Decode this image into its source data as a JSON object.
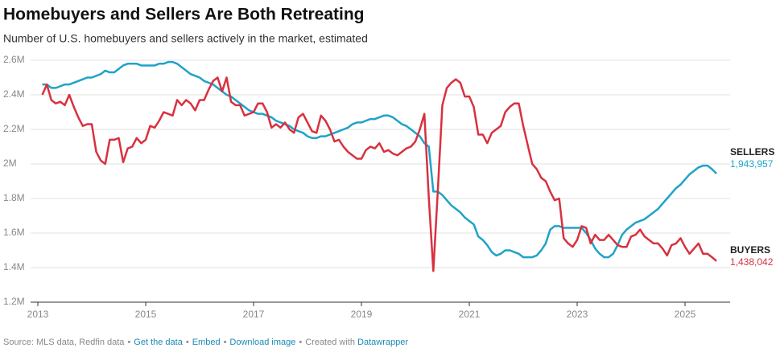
{
  "chart_data": {
    "type": "line",
    "title": "Homebuyers and Sellers Are Both Retreating",
    "subtitle": "Number of U.S. homebuyers and sellers actively in the market, estimated",
    "x": [
      2013.083,
      2013.167,
      2013.25,
      2013.333,
      2013.417,
      2013.5,
      2013.583,
      2013.667,
      2013.75,
      2013.833,
      2013.917,
      2014,
      2014.083,
      2014.167,
      2014.25,
      2014.333,
      2014.417,
      2014.5,
      2014.583,
      2014.667,
      2014.75,
      2014.833,
      2014.917,
      2015,
      2015.083,
      2015.167,
      2015.25,
      2015.333,
      2015.417,
      2015.5,
      2015.583,
      2015.667,
      2015.75,
      2015.833,
      2015.917,
      2016,
      2016.083,
      2016.167,
      2016.25,
      2016.333,
      2016.417,
      2016.5,
      2016.583,
      2016.667,
      2016.75,
      2016.833,
      2016.917,
      2017,
      2017.083,
      2017.167,
      2017.25,
      2017.333,
      2017.417,
      2017.5,
      2017.583,
      2017.667,
      2017.75,
      2017.833,
      2017.917,
      2018,
      2018.083,
      2018.167,
      2018.25,
      2018.333,
      2018.417,
      2018.5,
      2018.583,
      2018.667,
      2018.75,
      2018.833,
      2018.917,
      2019,
      2019.083,
      2019.167,
      2019.25,
      2019.333,
      2019.417,
      2019.5,
      2019.583,
      2019.667,
      2019.75,
      2019.833,
      2019.917,
      2020,
      2020.083,
      2020.167,
      2020.25,
      2020.333,
      2020.417,
      2020.5,
      2020.583,
      2020.667,
      2020.75,
      2020.833,
      2020.917,
      2021,
      2021.083,
      2021.167,
      2021.25,
      2021.333,
      2021.417,
      2021.5,
      2021.583,
      2021.667,
      2021.75,
      2021.833,
      2021.917,
      2022,
      2022.083,
      2022.167,
      2022.25,
      2022.333,
      2022.417,
      2022.5,
      2022.583,
      2022.667,
      2022.75,
      2022.833,
      2022.917,
      2023,
      2023.083,
      2023.167,
      2023.25,
      2023.333,
      2023.417,
      2023.5,
      2023.583,
      2023.667,
      2023.75,
      2023.833,
      2023.917,
      2024,
      2024.083,
      2024.167,
      2024.25,
      2024.333,
      2024.417,
      2024.5,
      2024.583,
      2024.667,
      2024.75,
      2024.833,
      2024.917,
      2025,
      2025.083,
      2025.167,
      2025.25,
      2025.333,
      2025.417,
      2025.5,
      2025.583
    ],
    "series": [
      {
        "name": "SELLERS",
        "color": "#1fa3c8",
        "values": [
          2460000,
          2460000,
          2440000,
          2440000,
          2450000,
          2460000,
          2460000,
          2470000,
          2480000,
          2490000,
          2500000,
          2500000,
          2510000,
          2520000,
          2540000,
          2530000,
          2530000,
          2550000,
          2570000,
          2580000,
          2580000,
          2580000,
          2570000,
          2570000,
          2570000,
          2570000,
          2580000,
          2580000,
          2590000,
          2590000,
          2580000,
          2560000,
          2540000,
          2520000,
          2510000,
          2500000,
          2480000,
          2470000,
          2460000,
          2440000,
          2420000,
          2400000,
          2390000,
          2370000,
          2350000,
          2330000,
          2310000,
          2300000,
          2290000,
          2290000,
          2280000,
          2270000,
          2250000,
          2240000,
          2230000,
          2220000,
          2200000,
          2190000,
          2180000,
          2160000,
          2150000,
          2150000,
          2160000,
          2160000,
          2170000,
          2180000,
          2190000,
          2200000,
          2210000,
          2230000,
          2240000,
          2240000,
          2250000,
          2260000,
          2260000,
          2270000,
          2280000,
          2280000,
          2270000,
          2250000,
          2230000,
          2220000,
          2200000,
          2180000,
          2160000,
          2120000,
          2100000,
          1840000,
          1840000,
          1820000,
          1790000,
          1760000,
          1740000,
          1720000,
          1690000,
          1670000,
          1650000,
          1580000,
          1560000,
          1530000,
          1490000,
          1470000,
          1480000,
          1500000,
          1500000,
          1490000,
          1480000,
          1460000,
          1460000,
          1460000,
          1470000,
          1500000,
          1540000,
          1620000,
          1640000,
          1640000,
          1630000,
          1630000,
          1630000,
          1630000,
          1630000,
          1600000,
          1560000,
          1510000,
          1480000,
          1460000,
          1460000,
          1480000,
          1530000,
          1590000,
          1620000,
          1640000,
          1660000,
          1670000,
          1680000,
          1700000,
          1720000,
          1740000,
          1770000,
          1800000,
          1830000,
          1860000,
          1880000,
          1910000,
          1940000,
          1960000,
          1980000,
          1990000,
          1990000,
          1970000,
          1943957
        ],
        "value_labels": [
          null,
          null,
          null,
          null,
          null,
          null,
          null,
          null,
          null,
          null,
          null,
          null,
          null,
          null,
          null,
          null,
          null,
          null,
          null,
          null,
          null,
          null,
          null,
          null,
          null,
          null,
          null,
          null,
          null,
          null,
          null,
          null,
          null,
          null,
          null,
          null,
          null,
          null,
          null,
          null,
          null,
          null,
          null,
          null,
          null,
          null,
          null,
          null,
          null,
          null,
          null,
          null,
          null,
          null,
          null,
          null,
          null,
          null,
          null,
          null,
          null,
          null,
          null,
          null,
          null,
          null,
          null,
          null,
          null,
          null,
          null,
          null,
          null,
          null,
          null,
          null,
          null,
          null,
          null,
          null,
          null,
          null,
          null,
          null,
          null,
          null,
          null,
          null,
          null,
          null,
          null,
          null,
          null,
          null,
          null,
          null,
          null,
          null,
          null,
          null,
          null,
          null,
          null,
          null,
          null,
          null,
          null,
          null,
          null,
          null,
          null,
          null,
          null,
          null,
          null,
          null,
          null,
          null,
          null,
          null,
          null,
          null,
          null,
          null,
          null,
          null,
          null,
          null,
          null,
          null,
          null,
          null,
          null,
          null,
          null,
          null,
          null,
          null,
          null,
          null,
          null,
          null,
          null,
          null,
          null,
          null,
          null,
          null,
          null,
          null,
          "1,943,957"
        ]
      },
      {
        "name": "BUYERS",
        "color": "#d8313f",
        "values": [
          2400000,
          2460000,
          2370000,
          2350000,
          2360000,
          2340000,
          2400000,
          2330000,
          2270000,
          2220000,
          2230000,
          2230000,
          2070000,
          2020000,
          2000000,
          2140000,
          2140000,
          2150000,
          2010000,
          2090000,
          2100000,
          2150000,
          2120000,
          2140000,
          2220000,
          2210000,
          2250000,
          2300000,
          2290000,
          2280000,
          2370000,
          2340000,
          2370000,
          2350000,
          2310000,
          2370000,
          2370000,
          2430000,
          2480000,
          2500000,
          2420000,
          2500000,
          2360000,
          2340000,
          2340000,
          2280000,
          2290000,
          2300000,
          2350000,
          2350000,
          2300000,
          2210000,
          2230000,
          2210000,
          2240000,
          2200000,
          2180000,
          2270000,
          2290000,
          2240000,
          2190000,
          2180000,
          2280000,
          2250000,
          2200000,
          2130000,
          2140000,
          2100000,
          2070000,
          2050000,
          2030000,
          2030000,
          2080000,
          2100000,
          2090000,
          2120000,
          2070000,
          2080000,
          2060000,
          2050000,
          2070000,
          2090000,
          2100000,
          2130000,
          2200000,
          2290000,
          1800000,
          1380000,
          1850000,
          2340000,
          2440000,
          2470000,
          2490000,
          2470000,
          2390000,
          2390000,
          2330000,
          2170000,
          2170000,
          2120000,
          2180000,
          2200000,
          2220000,
          2300000,
          2330000,
          2350000,
          2350000,
          2220000,
          2110000,
          2000000,
          1970000,
          1920000,
          1900000,
          1840000,
          1790000,
          1800000,
          1570000,
          1540000,
          1520000,
          1560000,
          1640000,
          1630000,
          1540000,
          1590000,
          1560000,
          1560000,
          1590000,
          1560000,
          1530000,
          1520000,
          1520000,
          1580000,
          1590000,
          1620000,
          1580000,
          1560000,
          1540000,
          1540000,
          1510000,
          1470000,
          1530000,
          1540000,
          1570000,
          1520000,
          1480000,
          1510000,
          1540000,
          1480000,
          1480000,
          1460000,
          1438042
        ],
        "value_labels": [
          null,
          null,
          null,
          null,
          null,
          null,
          null,
          null,
          null,
          null,
          null,
          null,
          null,
          null,
          null,
          null,
          null,
          null,
          null,
          null,
          null,
          null,
          null,
          null,
          null,
          null,
          null,
          null,
          null,
          null,
          null,
          null,
          null,
          null,
          null,
          null,
          null,
          null,
          null,
          null,
          null,
          null,
          null,
          null,
          null,
          null,
          null,
          null,
          null,
          null,
          null,
          null,
          null,
          null,
          null,
          null,
          null,
          null,
          null,
          null,
          null,
          null,
          null,
          null,
          null,
          null,
          null,
          null,
          null,
          null,
          null,
          null,
          null,
          null,
          null,
          null,
          null,
          null,
          null,
          null,
          null,
          null,
          null,
          null,
          null,
          null,
          null,
          null,
          null,
          null,
          null,
          null,
          null,
          null,
          null,
          null,
          null,
          null,
          null,
          null,
          null,
          null,
          null,
          null,
          null,
          null,
          null,
          null,
          null,
          null,
          null,
          null,
          null,
          null,
          null,
          null,
          null,
          null,
          null,
          null,
          null,
          null,
          null,
          null,
          null,
          null,
          null,
          null,
          null,
          null,
          null,
          null,
          null,
          null,
          null,
          null,
          null,
          null,
          null,
          null,
          null,
          null,
          null,
          null,
          null,
          null,
          null,
          null,
          null,
          null,
          "1,438,042"
        ]
      }
    ],
    "xlim": [
      2012.9,
      2025.75
    ],
    "xticks": [
      2013,
      2015,
      2017,
      2019,
      2021,
      2023,
      2025
    ],
    "ylim": [
      1200000,
      2600000
    ],
    "yticks": [
      {
        "value": 1200000,
        "label": "1.2M"
      },
      {
        "value": 1400000,
        "label": "1.4M"
      },
      {
        "value": 1600000,
        "label": "1.6M"
      },
      {
        "value": 1800000,
        "label": "1.8M"
      },
      {
        "value": 2000000,
        "label": "2M"
      },
      {
        "value": 2200000,
        "label": "2.2M"
      },
      {
        "value": 2400000,
        "label": "2.4M"
      },
      {
        "value": 2600000,
        "label": "2.6M"
      }
    ],
    "grid": true,
    "footer": {
      "source": "Source: MLS data, Redfin data",
      "links": [
        "Get the data",
        "Embed",
        "Download image"
      ],
      "credit": "Created with",
      "credit_link": "Datawrapper"
    }
  }
}
